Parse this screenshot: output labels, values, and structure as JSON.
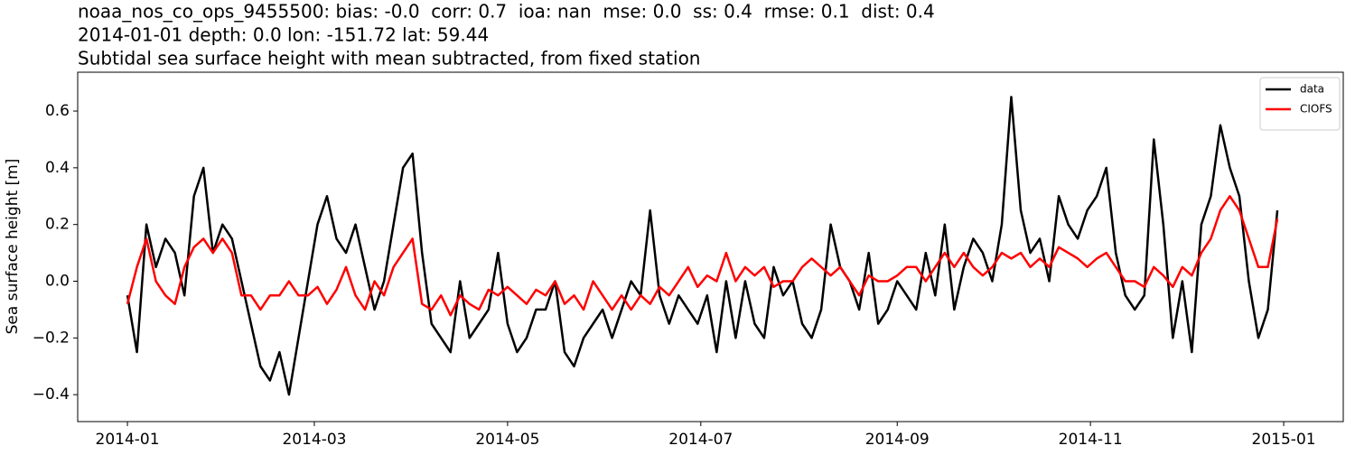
{
  "chart_data": {
    "type": "line",
    "title_lines": [
      "noaa_nos_co_ops_9455500: bias: -0.0  corr: 0.7  ioa: nan  mse: 0.0  ss: 0.4  rmse: 0.1  dist: 0.4",
      "2014-01-01 depth: 0.0 lon: -151.72 lat: 59.44",
      "Subtidal sea surface height with mean subtracted, from fixed station"
    ],
    "ylabel": "Sea surface height [m]",
    "x": [
      0,
      3,
      6,
      9,
      12,
      15,
      18,
      21,
      24,
      27,
      30,
      33,
      36,
      39,
      42,
      45,
      48,
      51,
      54,
      57,
      60,
      63,
      66,
      69,
      72,
      75,
      78,
      81,
      84,
      87,
      90,
      93,
      96,
      99,
      102,
      105,
      108,
      111,
      114,
      117,
      120,
      123,
      126,
      129,
      132,
      135,
      138,
      141,
      144,
      147,
      150,
      153,
      156,
      159,
      162,
      165,
      168,
      171,
      174,
      177,
      180,
      183,
      186,
      189,
      192,
      195,
      198,
      201,
      204,
      207,
      210,
      213,
      216,
      219,
      222,
      225,
      228,
      231,
      234,
      237,
      240,
      243,
      246,
      249,
      252,
      255,
      258,
      261,
      264,
      267,
      270,
      273,
      276,
      279,
      282,
      285,
      288,
      291,
      294,
      297,
      300,
      303,
      306,
      309,
      312,
      315,
      318,
      321,
      324,
      327,
      330,
      333,
      336,
      339,
      342,
      345,
      348,
      351,
      354,
      357,
      360,
      363
    ],
    "series": [
      {
        "name": "data",
        "color": "#000000",
        "values": [
          -0.05,
          -0.25,
          0.2,
          0.05,
          0.15,
          0.1,
          -0.05,
          0.3,
          0.4,
          0.1,
          0.2,
          0.15,
          0.0,
          -0.15,
          -0.3,
          -0.35,
          -0.25,
          -0.4,
          -0.2,
          0.0,
          0.2,
          0.3,
          0.15,
          0.1,
          0.2,
          0.05,
          -0.1,
          0.0,
          0.2,
          0.4,
          0.45,
          0.1,
          -0.15,
          -0.2,
          -0.25,
          0.0,
          -0.2,
          -0.15,
          -0.1,
          0.1,
          -0.15,
          -0.25,
          -0.2,
          -0.1,
          -0.1,
          0.0,
          -0.25,
          -0.3,
          -0.2,
          -0.15,
          -0.1,
          -0.2,
          -0.1,
          0.0,
          -0.05,
          0.25,
          -0.05,
          -0.15,
          -0.05,
          -0.1,
          -0.15,
          -0.05,
          -0.25,
          0.0,
          -0.2,
          0.0,
          -0.15,
          -0.2,
          0.05,
          -0.05,
          0.0,
          -0.15,
          -0.2,
          -0.1,
          0.2,
          0.05,
          0.0,
          -0.1,
          0.1,
          -0.15,
          -0.1,
          0.0,
          -0.05,
          -0.1,
          0.1,
          -0.05,
          0.2,
          -0.1,
          0.05,
          0.15,
          0.1,
          0.0,
          0.2,
          0.65,
          0.25,
          0.1,
          0.15,
          0.0,
          0.3,
          0.2,
          0.15,
          0.25,
          0.3,
          0.4,
          0.1,
          -0.05,
          -0.1,
          -0.05,
          0.5,
          0.2,
          -0.2,
          0.0,
          -0.25,
          0.2,
          0.3,
          0.55,
          0.4,
          0.3,
          0.0,
          -0.2,
          -0.1,
          0.25
        ]
      },
      {
        "name": "CIOFS",
        "color": "#ff0000",
        "values": [
          -0.08,
          0.05,
          0.15,
          0.0,
          -0.05,
          -0.08,
          0.05,
          0.12,
          0.15,
          0.1,
          0.15,
          0.1,
          -0.05,
          -0.05,
          -0.1,
          -0.05,
          -0.05,
          0.0,
          -0.05,
          -0.05,
          -0.02,
          -0.08,
          -0.03,
          0.05,
          -0.05,
          -0.1,
          0.0,
          -0.05,
          0.05,
          0.1,
          0.15,
          -0.08,
          -0.1,
          -0.05,
          -0.12,
          -0.05,
          -0.08,
          -0.1,
          -0.03,
          -0.05,
          -0.02,
          -0.05,
          -0.08,
          -0.03,
          -0.05,
          0.0,
          -0.08,
          -0.05,
          -0.1,
          0.0,
          -0.05,
          -0.1,
          -0.05,
          -0.1,
          -0.05,
          -0.08,
          -0.02,
          -0.05,
          0.0,
          0.05,
          -0.02,
          0.02,
          0.0,
          0.1,
          0.0,
          0.05,
          0.02,
          0.05,
          -0.02,
          0.0,
          0.0,
          0.05,
          0.08,
          0.05,
          0.02,
          0.05,
          0.0,
          -0.05,
          0.02,
          0.0,
          0.0,
          0.02,
          0.05,
          0.05,
          0.0,
          0.05,
          0.1,
          0.05,
          0.1,
          0.05,
          0.02,
          0.05,
          0.1,
          0.08,
          0.1,
          0.05,
          0.08,
          0.05,
          0.12,
          0.1,
          0.08,
          0.05,
          0.08,
          0.1,
          0.05,
          0.0,
          0.0,
          -0.02,
          0.05,
          0.02,
          -0.02,
          0.05,
          0.02,
          0.1,
          0.15,
          0.25,
          0.3,
          0.25,
          0.15,
          0.05,
          0.05,
          0.22
        ]
      }
    ],
    "xlim": [
      -15.7,
      383.8
    ],
    "xticks": [
      {
        "value": 0,
        "label": "2014-01"
      },
      {
        "value": 59,
        "label": "2014-03"
      },
      {
        "value": 120,
        "label": "2014-05"
      },
      {
        "value": 181,
        "label": "2014-07"
      },
      {
        "value": 243,
        "label": "2014-09"
      },
      {
        "value": 304,
        "label": "2014-11"
      },
      {
        "value": 365,
        "label": "2015-01"
      }
    ],
    "ylim": [
      -0.495,
      0.737
    ],
    "yticks": [
      {
        "value": -0.4,
        "label": "−0.4"
      },
      {
        "value": -0.2,
        "label": "−0.2"
      },
      {
        "value": 0.0,
        "label": "0.0"
      },
      0.2,
      0.4,
      0.6
    ],
    "grid": false,
    "legend": "upper right"
  }
}
